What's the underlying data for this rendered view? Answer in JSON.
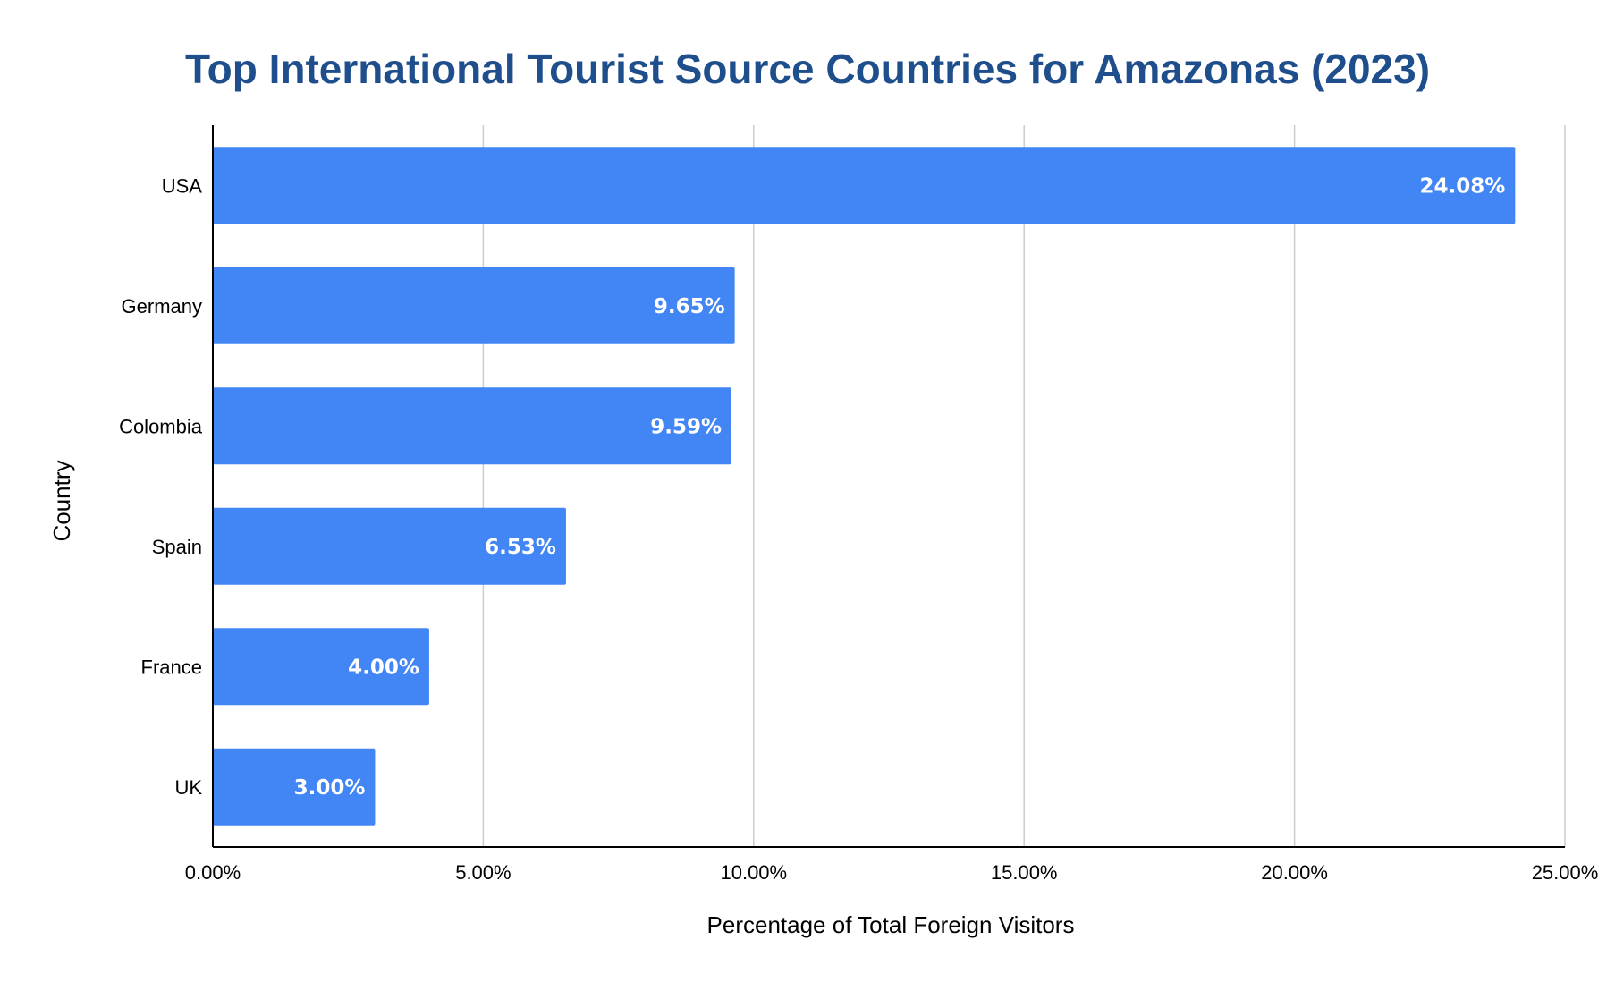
{
  "chart_data": {
    "type": "bar",
    "orientation": "horizontal",
    "title": "Top International Tourist Source Countries for Amazonas (2023)",
    "xlabel": "Percentage of Total Foreign Visitors",
    "ylabel": "Country",
    "categories": [
      "USA",
      "Germany",
      "Colombia",
      "Spain",
      "France",
      "UK"
    ],
    "values": [
      24.08,
      9.65,
      9.59,
      6.53,
      4.0,
      3.0
    ],
    "value_labels": [
      "24.08%",
      "9.65%",
      "9.59%",
      "6.53%",
      "4.00%",
      "3.00%"
    ],
    "x_ticks": [
      0,
      5,
      10,
      15,
      20,
      25
    ],
    "x_tick_labels": [
      "0.00%",
      "5.00%",
      "10.00%",
      "15.00%",
      "20.00%",
      "25.00%"
    ],
    "xlim": [
      0,
      25
    ],
    "grid": "vertical",
    "legend": "none",
    "colors": {
      "bar": "#4285F4",
      "title": "#1F4E8C",
      "grid": "#CCCCCC",
      "axis": "#000000"
    }
  }
}
